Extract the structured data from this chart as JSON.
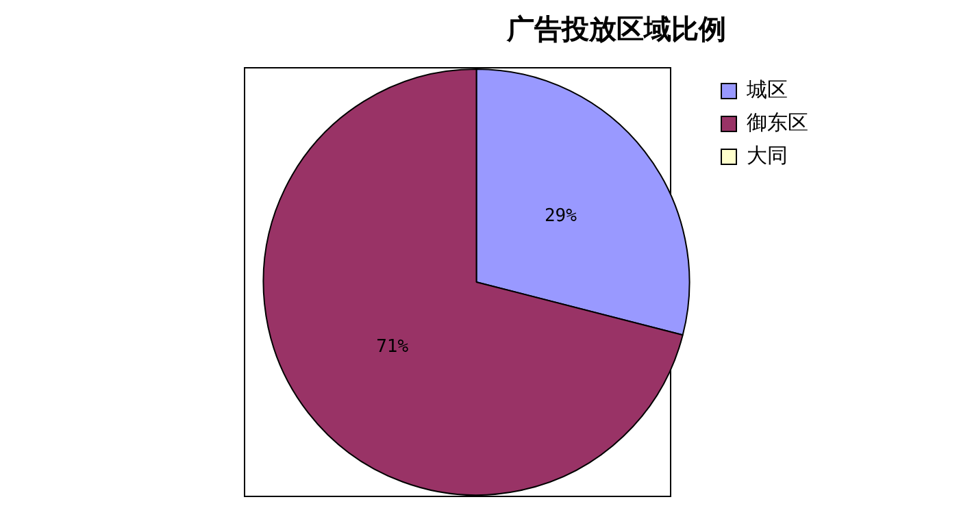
{
  "chart_data": {
    "type": "pie",
    "title": "广告投放区域比例",
    "categories": [
      "城区",
      "御东区",
      "大同"
    ],
    "values": [
      29,
      71,
      0
    ],
    "colors": [
      "#9999ff",
      "#993366",
      "#ffffcc"
    ],
    "value_labels": [
      "29%",
      "71%",
      null
    ],
    "legend": "top right"
  }
}
